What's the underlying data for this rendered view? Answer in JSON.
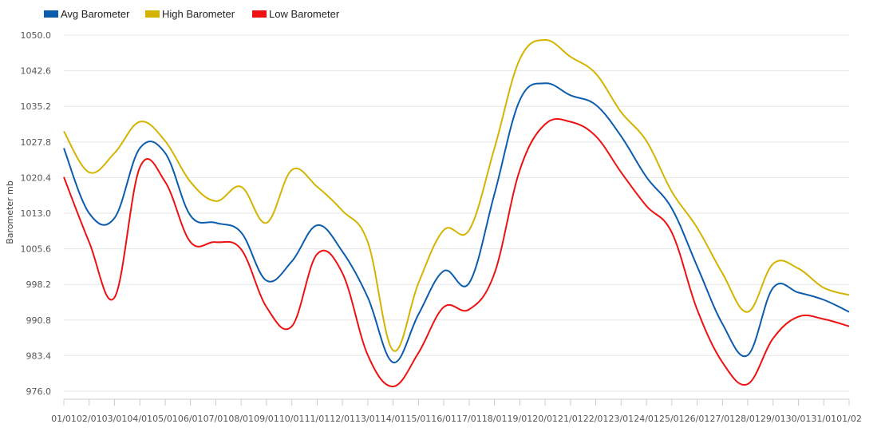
{
  "chart_data": {
    "type": "line",
    "title": "",
    "xlabel": "",
    "ylabel": "Barometer mb",
    "ylim": [
      976.0,
      1050.0
    ],
    "yticks": [
      "976.0",
      "983.4",
      "990.8",
      "998.2",
      "1005.6",
      "1013.0",
      "1020.4",
      "1027.8",
      "1035.2",
      "1042.6",
      "1050.0"
    ],
    "xticks": [
      "01/01",
      "02/01",
      "03/01",
      "04/01",
      "05/01",
      "06/01",
      "07/01",
      "08/01",
      "09/01",
      "10/01",
      "11/01",
      "12/01",
      "13/01",
      "14/01",
      "15/01",
      "16/01",
      "17/01",
      "18/01",
      "19/01",
      "20/01",
      "21/01",
      "22/01",
      "23/01",
      "24/01",
      "25/01",
      "26/01",
      "27/01",
      "28/01",
      "29/01",
      "30/01",
      "31/01",
      "01/02"
    ],
    "legend_position": "top-left",
    "grid": true,
    "x": [
      "01/01",
      "02/01",
      "03/01",
      "04/01",
      "05/01",
      "06/01",
      "07/01",
      "08/01",
      "09/01",
      "10/01",
      "11/01",
      "12/01",
      "13/01",
      "14/01",
      "15/01",
      "16/01",
      "17/01",
      "18/01",
      "19/01",
      "20/01",
      "21/01",
      "22/01",
      "23/01",
      "24/01",
      "25/01",
      "26/01",
      "27/01",
      "28/01",
      "29/01",
      "30/01",
      "31/01",
      "01/02"
    ],
    "series": [
      {
        "name": "Avg Barometer",
        "color": "#0b5cad",
        "values": [
          1026.5,
          1013.0,
          1012.0,
          1026.5,
          1025.5,
          1012.5,
          1011.0,
          1009.0,
          999.0,
          1003.0,
          1010.5,
          1005.0,
          995.5,
          982.0,
          992.0,
          1001.0,
          998.5,
          1017.0,
          1036.5,
          1040.0,
          1037.5,
          1035.5,
          1029.0,
          1020.5,
          1014.0,
          1002.0,
          990.0,
          983.5,
          997.5,
          996.5,
          995.0,
          992.5
        ]
      },
      {
        "name": "High Barometer",
        "color": "#d4b400",
        "values": [
          1030.0,
          1021.5,
          1025.5,
          1032.0,
          1028.0,
          1019.5,
          1015.5,
          1018.5,
          1011.0,
          1022.0,
          1018.5,
          1013.5,
          1007.0,
          984.5,
          998.5,
          1009.5,
          1009.5,
          1026.5,
          1045.0,
          1049.0,
          1045.5,
          1042.0,
          1034.0,
          1028.0,
          1017.5,
          1010.0,
          1000.5,
          992.5,
          1002.5,
          1001.5,
          997.5,
          996.0
        ]
      },
      {
        "name": "Low Barometer",
        "color": "#ee1111",
        "values": [
          1020.5,
          1007.0,
          995.5,
          1022.5,
          1019.5,
          1007.0,
          1007.0,
          1005.5,
          993.5,
          989.5,
          1004.5,
          1000.5,
          983.5,
          977.0,
          984.0,
          993.5,
          993.0,
          1000.5,
          1022.0,
          1031.5,
          1032.0,
          1029.0,
          1021.5,
          1014.5,
          1009.0,
          993.0,
          982.0,
          977.5,
          987.0,
          991.5,
          991.0,
          989.5
        ]
      }
    ]
  }
}
